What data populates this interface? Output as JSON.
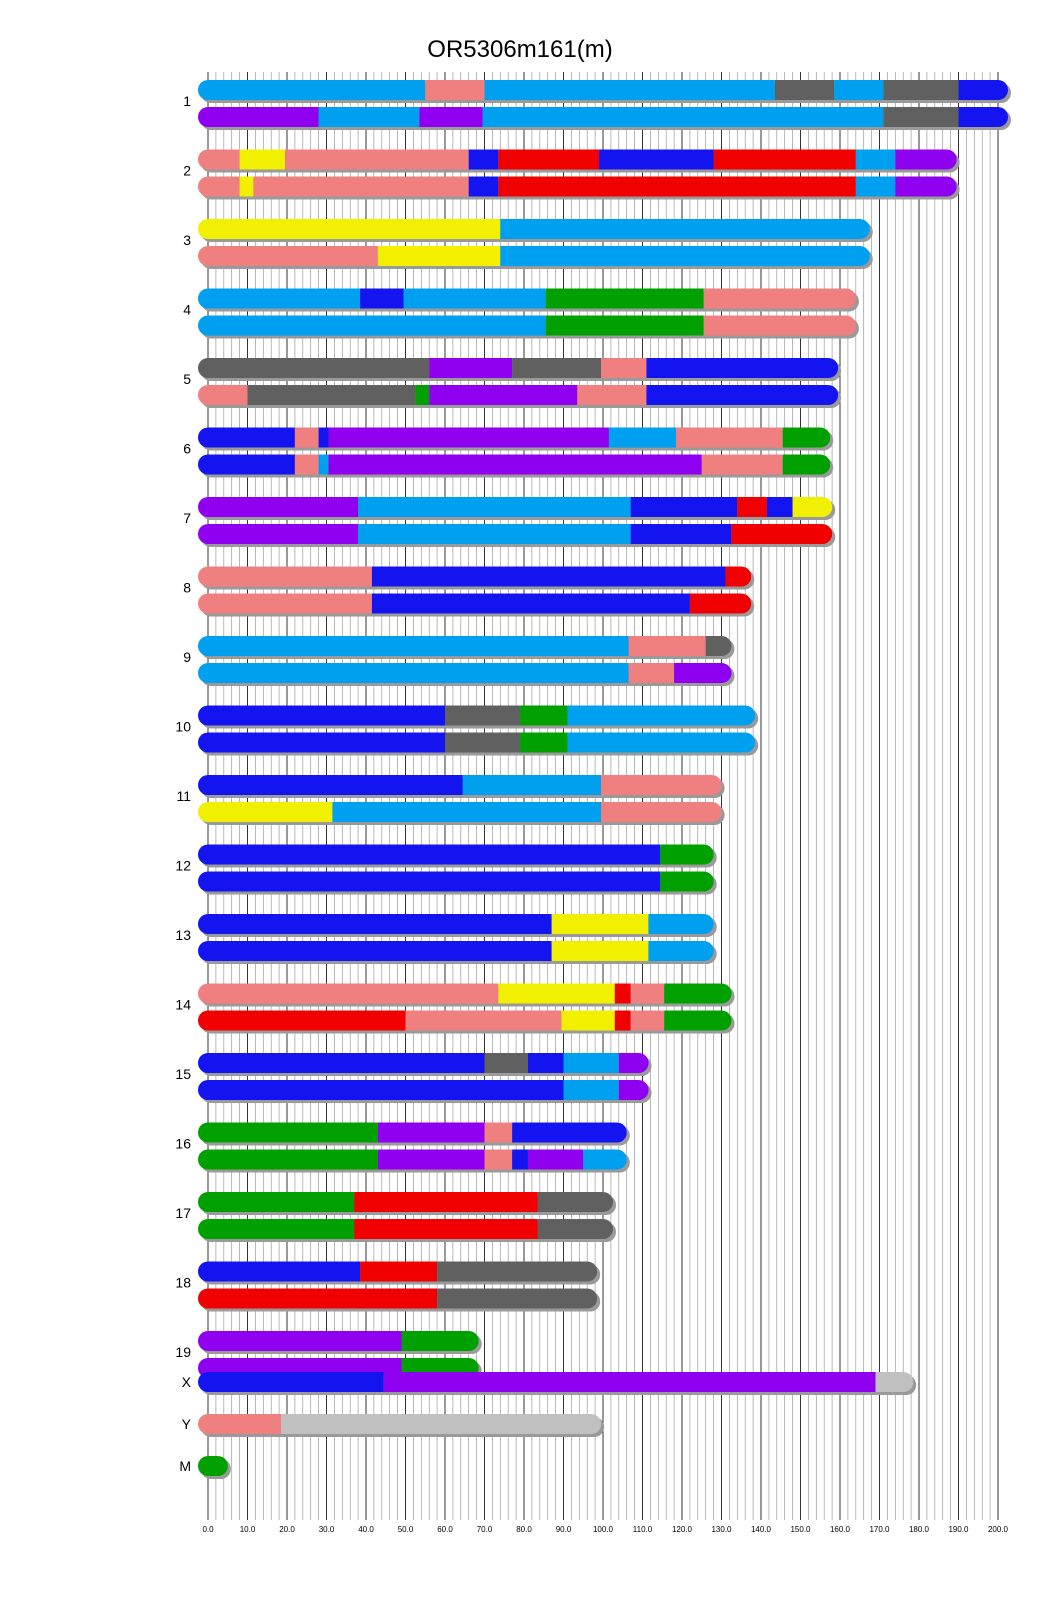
{
  "chart_data": {
    "type": "chromosome-ideogram",
    "title": "OR5306m161(m)",
    "xlabel": "",
    "ylabel": "",
    "xlim": [
      0,
      200
    ],
    "xticks": [
      "0.0",
      "10.0",
      "20.0",
      "30.0",
      "40.0",
      "50.0",
      "60.0",
      "70.0",
      "80.0",
      "90.0",
      "100.0",
      "110.0",
      "120.0",
      "130.0",
      "140.0",
      "150.0",
      "160.0",
      "170.0",
      "180.0",
      "190.0",
      "200.0"
    ],
    "colors": {
      "A": "#00a0f0",
      "B": "#f08080",
      "C": "#1414f0",
      "D": "#606060",
      "E": "#9000f0",
      "F": "#f0f000",
      "G": "#f00000",
      "H": "#00a000",
      "U": "#c0c0c0"
    },
    "chromosomes": [
      {
        "name": "1",
        "haplotypes": [
          [
            [
              0,
              "A"
            ],
            [
              55,
              "B"
            ],
            [
              70,
              "A"
            ],
            [
              143.5,
              "D"
            ],
            [
              158.5,
              "A"
            ],
            [
              171,
              "D"
            ],
            [
              190,
              "C"
            ],
            [
              200,
              null
            ]
          ],
          [
            [
              0,
              "E"
            ],
            [
              28,
              "A"
            ],
            [
              53.5,
              "E"
            ],
            [
              69.5,
              "A"
            ],
            [
              171,
              "D"
            ],
            [
              190,
              "C"
            ],
            [
              200,
              null
            ]
          ]
        ]
      },
      {
        "name": "2",
        "haplotypes": [
          [
            [
              0,
              "B"
            ],
            [
              8,
              "F"
            ],
            [
              19.5,
              "B"
            ],
            [
              66,
              "C"
            ],
            [
              73.5,
              "G"
            ],
            [
              99,
              "C"
            ],
            [
              128,
              "G"
            ],
            [
              164,
              "A"
            ],
            [
              174,
              "E"
            ],
            [
              187,
              null
            ]
          ],
          [
            [
              0,
              "B"
            ],
            [
              8,
              "F"
            ],
            [
              11.5,
              "B"
            ],
            [
              66,
              "C"
            ],
            [
              73.5,
              "G"
            ],
            [
              164,
              "A"
            ],
            [
              174,
              "E"
            ],
            [
              187,
              null
            ]
          ]
        ]
      },
      {
        "name": "3",
        "haplotypes": [
          [
            [
              0,
              "F"
            ],
            [
              74,
              "A"
            ],
            [
              165,
              null
            ]
          ],
          [
            [
              0,
              "B"
            ],
            [
              43,
              "F"
            ],
            [
              74,
              "A"
            ],
            [
              165,
              null
            ]
          ]
        ]
      },
      {
        "name": "4",
        "haplotypes": [
          [
            [
              0,
              "A"
            ],
            [
              38.5,
              "C"
            ],
            [
              49.5,
              "A"
            ],
            [
              85.5,
              "H"
            ],
            [
              125.5,
              "B"
            ],
            [
              161.5,
              null
            ]
          ],
          [
            [
              0,
              "A"
            ],
            [
              85.5,
              "H"
            ],
            [
              125.5,
              "B"
            ],
            [
              161.5,
              null
            ]
          ]
        ]
      },
      {
        "name": "5",
        "haplotypes": [
          [
            [
              0,
              "D"
            ],
            [
              56,
              "E"
            ],
            [
              77,
              "D"
            ],
            [
              99.5,
              "B"
            ],
            [
              111,
              "C"
            ],
            [
              157,
              null
            ]
          ],
          [
            [
              0,
              "B"
            ],
            [
              10,
              "D"
            ],
            [
              52.5,
              "H"
            ],
            [
              56,
              "E"
            ],
            [
              93.5,
              "B"
            ],
            [
              111,
              "C"
            ],
            [
              157,
              null
            ]
          ]
        ]
      },
      {
        "name": "6",
        "haplotypes": [
          [
            [
              0,
              "C"
            ],
            [
              22,
              "B"
            ],
            [
              28,
              "C"
            ],
            [
              30.5,
              "E"
            ],
            [
              101.5,
              "A"
            ],
            [
              118.5,
              "B"
            ],
            [
              145.5,
              "H"
            ],
            [
              155,
              null
            ]
          ],
          [
            [
              0,
              "C"
            ],
            [
              22,
              "B"
            ],
            [
              28,
              "A"
            ],
            [
              30.5,
              "E"
            ],
            [
              125,
              "B"
            ],
            [
              145.5,
              "H"
            ],
            [
              155,
              null
            ]
          ]
        ]
      },
      {
        "name": "7",
        "haplotypes": [
          [
            [
              0,
              "E"
            ],
            [
              38,
              "A"
            ],
            [
              107,
              "C"
            ],
            [
              134,
              "G"
            ],
            [
              141.5,
              "C"
            ],
            [
              148,
              "F"
            ],
            [
              155.5,
              null
            ]
          ],
          [
            [
              0,
              "E"
            ],
            [
              38,
              "A"
            ],
            [
              107,
              "C"
            ],
            [
              132.5,
              "G"
            ],
            [
              155.5,
              null
            ]
          ]
        ]
      },
      {
        "name": "8",
        "haplotypes": [
          [
            [
              0,
              "B"
            ],
            [
              41.5,
              "C"
            ],
            [
              131,
              "G"
            ],
            [
              135,
              null
            ]
          ],
          [
            [
              0,
              "B"
            ],
            [
              41.5,
              "C"
            ],
            [
              122,
              "G"
            ],
            [
              135,
              null
            ]
          ]
        ]
      },
      {
        "name": "9",
        "haplotypes": [
          [
            [
              0,
              "A"
            ],
            [
              106.5,
              "B"
            ],
            [
              126,
              "D"
            ],
            [
              130,
              null
            ]
          ],
          [
            [
              0,
              "A"
            ],
            [
              106.5,
              "B"
            ],
            [
              118,
              "E"
            ],
            [
              130,
              null
            ]
          ]
        ]
      },
      {
        "name": "10",
        "haplotypes": [
          [
            [
              0,
              "C"
            ],
            [
              60,
              "D"
            ],
            [
              79,
              "H"
            ],
            [
              91,
              "A"
            ],
            [
              136,
              null
            ]
          ],
          [
            [
              0,
              "C"
            ],
            [
              60,
              "D"
            ],
            [
              79,
              "H"
            ],
            [
              91,
              "A"
            ],
            [
              136,
              null
            ]
          ]
        ]
      },
      {
        "name": "11",
        "haplotypes": [
          [
            [
              0,
              "C"
            ],
            [
              64.5,
              "A"
            ],
            [
              99.5,
              "B"
            ],
            [
              127.5,
              null
            ]
          ],
          [
            [
              0,
              "F"
            ],
            [
              31.5,
              "A"
            ],
            [
              99.5,
              "B"
            ],
            [
              127.5,
              null
            ]
          ]
        ]
      },
      {
        "name": "12",
        "haplotypes": [
          [
            [
              0,
              "C"
            ],
            [
              114.5,
              "H"
            ],
            [
              125.5,
              null
            ]
          ],
          [
            [
              0,
              "C"
            ],
            [
              114.5,
              "H"
            ],
            [
              125.5,
              null
            ]
          ]
        ]
      },
      {
        "name": "13",
        "haplotypes": [
          [
            [
              0,
              "C"
            ],
            [
              87,
              "F"
            ],
            [
              111.5,
              "A"
            ],
            [
              125.5,
              null
            ]
          ],
          [
            [
              0,
              "C"
            ],
            [
              87,
              "F"
            ],
            [
              111.5,
              "A"
            ],
            [
              125.5,
              null
            ]
          ]
        ]
      },
      {
        "name": "14",
        "haplotypes": [
          [
            [
              0,
              "B"
            ],
            [
              73.5,
              "F"
            ],
            [
              103,
              "G"
            ],
            [
              107,
              "B"
            ],
            [
              115.5,
              "H"
            ],
            [
              130,
              null
            ]
          ],
          [
            [
              0,
              "G"
            ],
            [
              50,
              "B"
            ],
            [
              89.5,
              "F"
            ],
            [
              103,
              "G"
            ],
            [
              107,
              "B"
            ],
            [
              115.5,
              "H"
            ],
            [
              130,
              null
            ]
          ]
        ]
      },
      {
        "name": "15",
        "haplotypes": [
          [
            [
              0,
              "C"
            ],
            [
              70,
              "D"
            ],
            [
              81,
              "C"
            ],
            [
              90,
              "A"
            ],
            [
              104,
              "E"
            ],
            [
              109,
              null
            ]
          ],
          [
            [
              0,
              "C"
            ],
            [
              90,
              "A"
            ],
            [
              104,
              "E"
            ],
            [
              109,
              null
            ]
          ]
        ]
      },
      {
        "name": "16",
        "haplotypes": [
          [
            [
              0,
              "H"
            ],
            [
              43,
              "E"
            ],
            [
              70,
              "B"
            ],
            [
              77,
              "C"
            ],
            [
              103.5,
              null
            ]
          ],
          [
            [
              0,
              "H"
            ],
            [
              43,
              "E"
            ],
            [
              70,
              "B"
            ],
            [
              77,
              "C"
            ],
            [
              81,
              "E"
            ],
            [
              95,
              "A"
            ],
            [
              103.5,
              null
            ]
          ]
        ]
      },
      {
        "name": "17",
        "haplotypes": [
          [
            [
              0,
              "H"
            ],
            [
              37,
              "G"
            ],
            [
              83.5,
              "D"
            ],
            [
              100,
              null
            ]
          ],
          [
            [
              0,
              "H"
            ],
            [
              37,
              "G"
            ],
            [
              83.5,
              "D"
            ],
            [
              100,
              null
            ]
          ]
        ]
      },
      {
        "name": "18",
        "haplotypes": [
          [
            [
              0,
              "C"
            ],
            [
              38.5,
              "G"
            ],
            [
              58,
              "D"
            ],
            [
              96,
              null
            ]
          ],
          [
            [
              0,
              "G"
            ],
            [
              58,
              "D"
            ],
            [
              96,
              null
            ]
          ]
        ]
      },
      {
        "name": "19",
        "haplotypes": [
          [
            [
              0,
              "E"
            ],
            [
              49,
              "H"
            ],
            [
              66,
              null
            ]
          ],
          [
            [
              0,
              "E"
            ],
            [
              49,
              "H"
            ],
            [
              66,
              null
            ]
          ]
        ]
      },
      {
        "name": "X",
        "haplotypes": [
          [
            [
              0,
              "C"
            ],
            [
              44.5,
              "E"
            ],
            [
              169,
              "U"
            ],
            [
              176,
              null
            ]
          ]
        ]
      },
      {
        "name": "Y",
        "haplotypes": [
          [
            [
              0,
              "B"
            ],
            [
              18.5,
              "U"
            ],
            [
              97,
              null
            ]
          ]
        ]
      },
      {
        "name": "M",
        "haplotypes": [
          [
            [
              0,
              "H"
            ],
            [
              2.5,
              null
            ]
          ]
        ]
      }
    ]
  }
}
